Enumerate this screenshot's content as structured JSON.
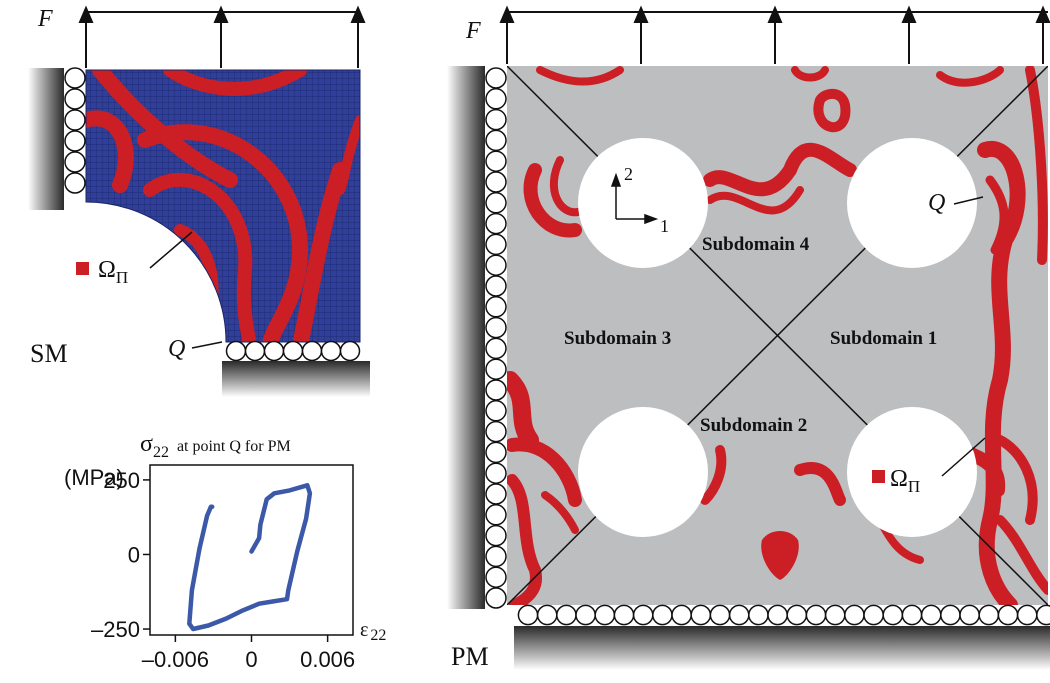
{
  "colors": {
    "mesh_blue": "#2f3f9a",
    "mesh_line": "#1a2466",
    "plastic_red": "#cc1f25",
    "domain_gray": "#bcbec0",
    "curve_blue": "#3c58a8",
    "ink": "#111111"
  },
  "sm": {
    "force_label": "F",
    "model_label": "SM",
    "point_label": "Q",
    "legend_symbol": "Ω",
    "legend_subscript": "Π"
  },
  "pm": {
    "force_label": "F",
    "model_label": "PM",
    "point_label": "Q",
    "legend_symbol": "Ω",
    "legend_subscript": "Π",
    "axis_1": "1",
    "axis_2": "2",
    "subdomains": [
      "Subdomain 1",
      "Subdomain 2",
      "Subdomain 3",
      "Subdomain 4"
    ]
  },
  "chart_data": {
    "type": "line",
    "title": "at point Q for PM",
    "title_symbol": "σ",
    "title_subscript": "22",
    "xlabel_symbol": "ε",
    "xlabel_subscript": "22",
    "ylabel_unit": "(MPa)",
    "xlim": [
      -0.008,
      0.008
    ],
    "ylim": [
      -270,
      300
    ],
    "x_ticks": [
      {
        "value": -0.006,
        "label": "–0.006"
      },
      {
        "value": 0,
        "label": "0"
      },
      {
        "value": 0.006,
        "label": "0.006"
      }
    ],
    "y_ticks": [
      {
        "value": 250,
        "label": "250"
      },
      {
        "value": 0,
        "label": "0"
      },
      {
        "value": -250,
        "label": "–250"
      }
    ],
    "series": [
      {
        "x": [
          0.0,
          0.0006,
          0.0007,
          0.0012,
          0.0018,
          0.003,
          0.0044,
          0.0046,
          0.0043,
          0.0036,
          0.0029,
          0.0028,
          0.0016,
          0.0006,
          -0.0008,
          -0.002,
          -0.0034,
          -0.0046,
          -0.0049,
          -0.0047,
          -0.0041,
          -0.0035,
          -0.0032,
          -0.0031
        ],
        "y": [
          10,
          55,
          100,
          185,
          205,
          215,
          232,
          205,
          120,
          10,
          -120,
          -150,
          -158,
          -165,
          -190,
          -215,
          -238,
          -250,
          -232,
          -120,
          20,
          130,
          160,
          160
        ]
      }
    ]
  }
}
